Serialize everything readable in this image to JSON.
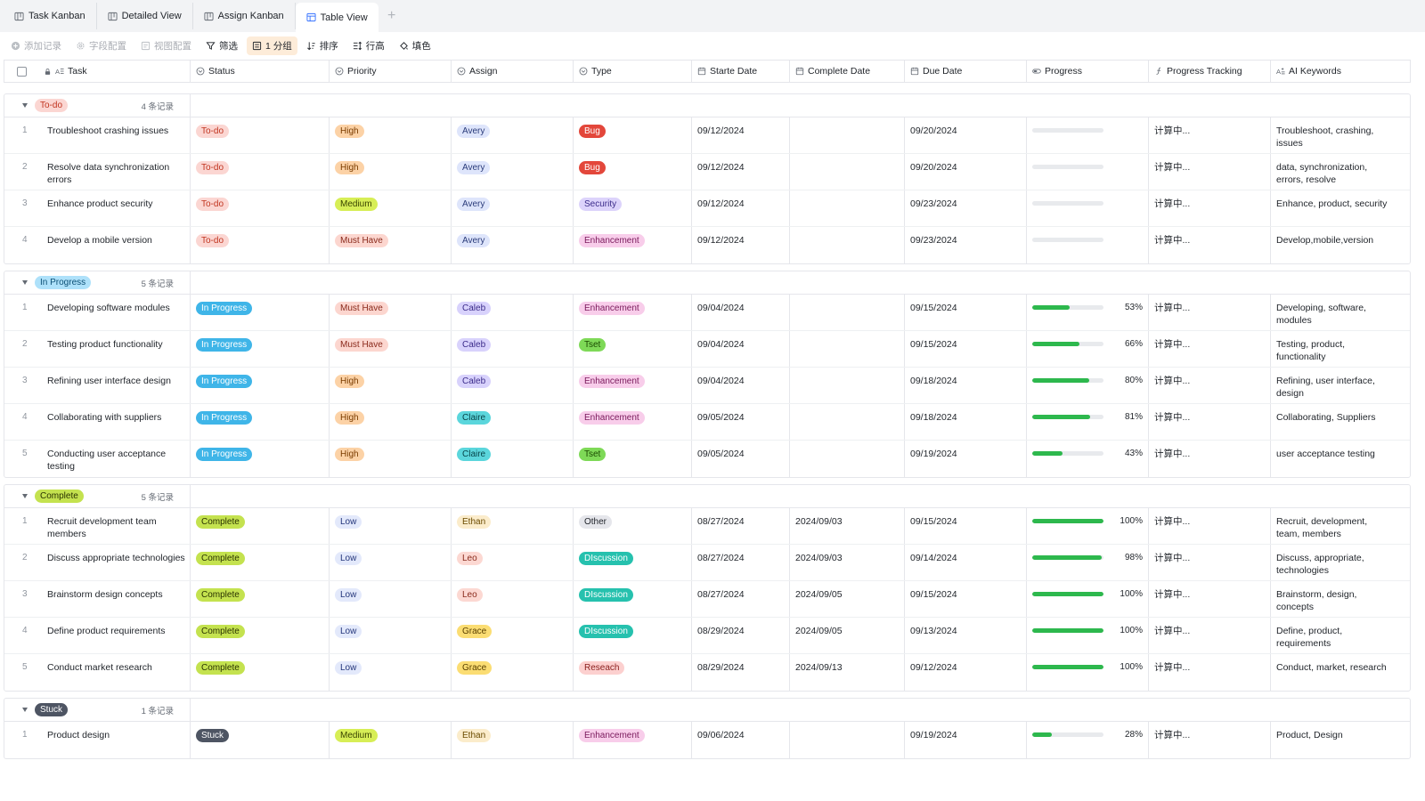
{
  "tabs": [
    {
      "label": "Task Kanban",
      "icon": "kanban-icon",
      "active": false
    },
    {
      "label": "Detailed View",
      "icon": "kanban-icon",
      "active": false
    },
    {
      "label": "Assign Kanban",
      "icon": "kanban-icon",
      "active": false
    },
    {
      "label": "Table View",
      "icon": "table-icon",
      "active": true
    }
  ],
  "toolbar": [
    {
      "label": "添加记录",
      "icon": "plus-circle-icon",
      "state": "disabled"
    },
    {
      "label": "字段配置",
      "icon": "gear-icon",
      "state": "disabled"
    },
    {
      "label": "视图配置",
      "icon": "view-config-icon",
      "state": "disabled"
    },
    {
      "label": "筛选",
      "icon": "filter-icon",
      "state": "normal"
    },
    {
      "label": "1 分组",
      "icon": "group-icon",
      "state": "active"
    },
    {
      "label": "排序",
      "icon": "sort-icon",
      "state": "normal"
    },
    {
      "label": "行高",
      "icon": "row-height-icon",
      "state": "normal"
    },
    {
      "label": "填色",
      "icon": "fill-color-icon",
      "state": "normal"
    }
  ],
  "columns": [
    {
      "key": "task",
      "label": "Task",
      "icon": "text-icon"
    },
    {
      "key": "status",
      "label": "Status",
      "icon": "single-select-icon"
    },
    {
      "key": "priority",
      "label": "Priority",
      "icon": "single-select-icon"
    },
    {
      "key": "assign",
      "label": "Assign",
      "icon": "single-select-icon"
    },
    {
      "key": "type",
      "label": "Type",
      "icon": "single-select-icon"
    },
    {
      "key": "start",
      "label": "Starte Date",
      "icon": "calendar-icon"
    },
    {
      "key": "complete",
      "label": "Complete Date",
      "icon": "calendar-icon"
    },
    {
      "key": "due",
      "label": "Due Date",
      "icon": "calendar-icon"
    },
    {
      "key": "progress",
      "label": "Progress",
      "icon": "progress-icon"
    },
    {
      "key": "tracking",
      "label": "Progress Tracking",
      "icon": "formula-icon"
    },
    {
      "key": "keywords",
      "label": "AI Keywords",
      "icon": "ai-text-icon"
    }
  ],
  "tag_colors": {
    "status": {
      "To-do": [
        "#fbd6d2",
        "#c1341f"
      ],
      "In Progress": [
        "#3fb5e8",
        "#ffffff"
      ],
      "Complete": [
        "#c4e24f",
        "#2a3300"
      ],
      "Stuck": [
        "#4e5563",
        "#ffffff"
      ]
    },
    "priority": {
      "High": [
        "#fcd2a6",
        "#7a3c00"
      ],
      "Medium": [
        "#d7ee56",
        "#3a4400"
      ],
      "Must Have": [
        "#fcd6cf",
        "#8a2a1c"
      ],
      "Low": [
        "#e3e9fb",
        "#23357a"
      ]
    },
    "assign": {
      "Avery": [
        "#dee5fb",
        "#2a3b7a"
      ],
      "Caleb": [
        "#d8d2fc",
        "#3b2b8a"
      ],
      "Claire": [
        "#5bd6dc",
        "#074449"
      ],
      "Ethan": [
        "#fbeccb",
        "#6b4b00"
      ],
      "Leo": [
        "#fcd8d2",
        "#8a2a1c"
      ],
      "Grace": [
        "#fbdd73",
        "#5a4000"
      ]
    },
    "type": {
      "Bug": [
        "#e3473b",
        "#ffffff"
      ],
      "Security": [
        "#dcd3fb",
        "#3b2b8a"
      ],
      "Enhancement": [
        "#f8cdea",
        "#7a1a5c"
      ],
      "Tset": [
        "#7ed957",
        "#1a4a00"
      ],
      "Other": [
        "#e5e6eb",
        "#1f2329"
      ],
      "DIscussion": [
        "#26c1ae",
        "#ffffff"
      ],
      "Reseach": [
        "#fcd0cf",
        "#8a1e1c"
      ]
    }
  },
  "groups": [
    {
      "name": "To-do",
      "tag_bg": "#fbd6d2",
      "tag_fg": "#c1341f",
      "count_label": "4 条记录",
      "rows": [
        {
          "idx": "1",
          "task": "Troubleshoot crashing issues",
          "status": "To-do",
          "priority": "High",
          "assign": "Avery",
          "type": "Bug",
          "start": "09/12/2024",
          "complete": "",
          "due": "09/20/2024",
          "progress": 0,
          "progress_label": "",
          "tracking": "计算中...",
          "keywords": "Troubleshoot, crashing, issues"
        },
        {
          "idx": "2",
          "task": "Resolve data synchronization errors",
          "status": "To-do",
          "priority": "High",
          "assign": "Avery",
          "type": "Bug",
          "start": "09/12/2024",
          "complete": "",
          "due": "09/20/2024",
          "progress": 0,
          "progress_label": "",
          "tracking": "计算中...",
          "keywords": "data, synchronization, errors, resolve"
        },
        {
          "idx": "3",
          "task": "Enhance product security",
          "status": "To-do",
          "priority": "Medium",
          "assign": "Avery",
          "type": "Security",
          "start": "09/12/2024",
          "complete": "",
          "due": "09/23/2024",
          "progress": 0,
          "progress_label": "",
          "tracking": "计算中...",
          "keywords": "Enhance, product, security"
        },
        {
          "idx": "4",
          "task": "Develop a mobile version",
          "status": "To-do",
          "priority": "Must Have",
          "assign": "Avery",
          "type": "Enhancement",
          "start": "09/12/2024",
          "complete": "",
          "due": "09/23/2024",
          "progress": 0,
          "progress_label": "",
          "tracking": "计算中...",
          "keywords": "Develop,mobile,version"
        }
      ]
    },
    {
      "name": "In Progress",
      "tag_bg": "#aee1fa",
      "tag_fg": "#0b4f75",
      "count_label": "5 条记录",
      "rows": [
        {
          "idx": "1",
          "task": "Developing software modules",
          "status": "In Progress",
          "priority": "Must Have",
          "assign": "Caleb",
          "type": "Enhancement",
          "start": "09/04/2024",
          "complete": "",
          "due": "09/15/2024",
          "progress": 53,
          "progress_label": "53%",
          "tracking": "计算中...",
          "keywords": "Developing, software, modules"
        },
        {
          "idx": "2",
          "task": "Testing product functionality",
          "status": "In Progress",
          "priority": "Must Have",
          "assign": "Caleb",
          "type": "Tset",
          "start": "09/04/2024",
          "complete": "",
          "due": "09/15/2024",
          "progress": 66,
          "progress_label": "66%",
          "tracking": "计算中...",
          "keywords": "Testing, product, functionality"
        },
        {
          "idx": "3",
          "task": "Refining user interface design",
          "status": "In Progress",
          "priority": "High",
          "assign": "Caleb",
          "type": "Enhancement",
          "start": "09/04/2024",
          "complete": "",
          "due": "09/18/2024",
          "progress": 80,
          "progress_label": "80%",
          "tracking": "计算中...",
          "keywords": "Refining, user interface, design"
        },
        {
          "idx": "4",
          "task": "Collaborating with suppliers",
          "status": "In Progress",
          "priority": "High",
          "assign": "Claire",
          "type": "Enhancement",
          "start": "09/05/2024",
          "complete": "",
          "due": "09/18/2024",
          "progress": 81,
          "progress_label": "81%",
          "tracking": "计算中...",
          "keywords": "Collaborating, Suppliers"
        },
        {
          "idx": "5",
          "task": "Conducting user acceptance testing",
          "status": "In Progress",
          "priority": "High",
          "assign": "Claire",
          "type": "Tset",
          "start": "09/05/2024",
          "complete": "",
          "due": "09/19/2024",
          "progress": 43,
          "progress_label": "43%",
          "tracking": "计算中...",
          "keywords": "user acceptance testing"
        }
      ]
    },
    {
      "name": "Complete",
      "tag_bg": "#c4e24f",
      "tag_fg": "#2a3300",
      "count_label": "5 条记录",
      "rows": [
        {
          "idx": "1",
          "task": "Recruit development team members",
          "status": "Complete",
          "priority": "Low",
          "assign": "Ethan",
          "type": "Other",
          "start": "08/27/2024",
          "complete": "2024/09/03",
          "due": "09/15/2024",
          "progress": 100,
          "progress_label": "100%",
          "tracking": "计算中...",
          "keywords": "Recruit, development, team, members"
        },
        {
          "idx": "2",
          "task": "Discuss appropriate technologies",
          "status": "Complete",
          "priority": "Low",
          "assign": "Leo",
          "type": "DIscussion",
          "start": "08/27/2024",
          "complete": "2024/09/03",
          "due": "09/14/2024",
          "progress": 98,
          "progress_label": "98%",
          "tracking": "计算中...",
          "keywords": "Discuss, appropriate, technologies"
        },
        {
          "idx": "3",
          "task": "Brainstorm design concepts",
          "status": "Complete",
          "priority": "Low",
          "assign": "Leo",
          "type": "DIscussion",
          "start": "08/27/2024",
          "complete": "2024/09/05",
          "due": "09/15/2024",
          "progress": 100,
          "progress_label": "100%",
          "tracking": "计算中...",
          "keywords": "Brainstorm, design, concepts"
        },
        {
          "idx": "4",
          "task": "Define product requirements",
          "status": "Complete",
          "priority": "Low",
          "assign": "Grace",
          "type": "DIscussion",
          "start": "08/29/2024",
          "complete": "2024/09/05",
          "due": "09/13/2024",
          "progress": 100,
          "progress_label": "100%",
          "tracking": "计算中...",
          "keywords": "Define, product, requirements"
        },
        {
          "idx": "5",
          "task": "Conduct market research",
          "status": "Complete",
          "priority": "Low",
          "assign": "Grace",
          "type": "Reseach",
          "start": "08/29/2024",
          "complete": "2024/09/13",
          "due": "09/12/2024",
          "progress": 100,
          "progress_label": "100%",
          "tracking": "计算中...",
          "keywords": "Conduct, market, research"
        }
      ]
    },
    {
      "name": "Stuck",
      "tag_bg": "#4e5563",
      "tag_fg": "#ffffff",
      "count_label": "1 条记录",
      "rows": [
        {
          "idx": "1",
          "task": "Product design",
          "status": "Stuck",
          "priority": "Medium",
          "assign": "Ethan",
          "type": "Enhancement",
          "start": "09/06/2024",
          "complete": "",
          "due": "09/19/2024",
          "progress": 28,
          "progress_label": "28%",
          "tracking": "计算中...",
          "keywords": "Product, Design"
        }
      ]
    }
  ]
}
